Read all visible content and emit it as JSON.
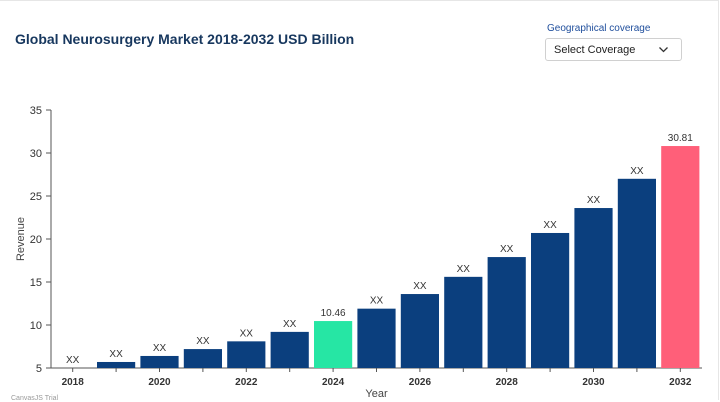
{
  "header": {
    "title": "Global Neurosurgery Market 2018-2032 USD Billion"
  },
  "coverage": {
    "label": "Geographical coverage",
    "selected": "Select Coverage"
  },
  "credit": "CanvasJS Trial",
  "colors": {
    "bar": "#0b3f7e",
    "current_year": "#26e6a4",
    "forecast_end": "#ff5f79",
    "title": "#17375e"
  },
  "chart_data": {
    "type": "bar",
    "xlabel": "Year",
    "ylabel": "Revenue",
    "ylim": [
      5,
      35
    ],
    "yticks": [
      5,
      10,
      15,
      20,
      25,
      30,
      35
    ],
    "xtick_labels": [
      "2018",
      "2020",
      "2022",
      "2024",
      "2026",
      "2028",
      "2030",
      "2032"
    ],
    "grid": false,
    "categories": [
      "2018",
      "2019",
      "2020",
      "2021",
      "2022",
      "2023",
      "2024",
      "2025",
      "2026",
      "2027",
      "2028",
      "2029",
      "2030",
      "2031",
      "2032"
    ],
    "values": [
      5.0,
      5.7,
      6.4,
      7.2,
      8.1,
      9.2,
      10.46,
      11.9,
      13.6,
      15.6,
      17.9,
      20.7,
      23.6,
      27.0,
      30.81
    ],
    "data_labels": [
      "XX",
      "XX",
      "XX",
      "XX",
      "XX",
      "XX",
      "10.46",
      "XX",
      "XX",
      "XX",
      "XX",
      "XX",
      "XX",
      "XX",
      "30.81"
    ],
    "highlight": {
      "2024": "current_year",
      "2032": "forecast_end"
    }
  }
}
